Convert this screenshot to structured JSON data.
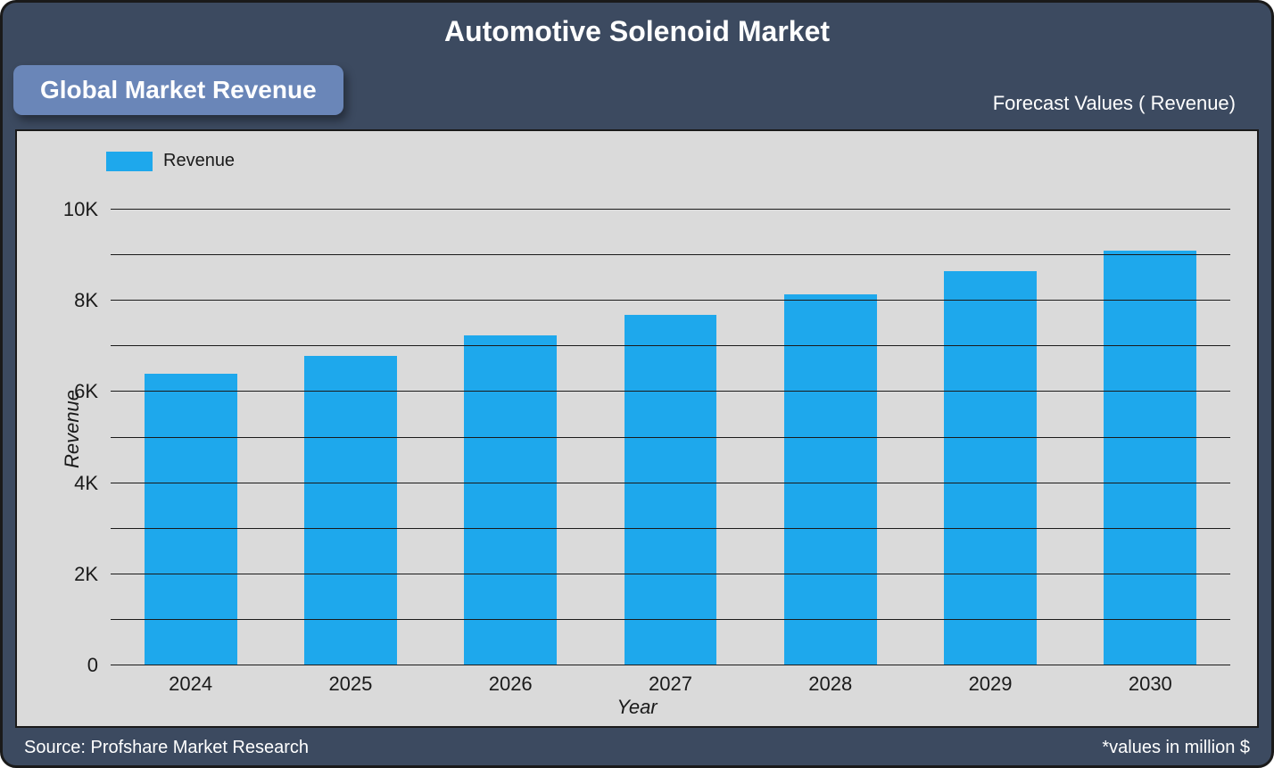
{
  "title": {
    "text": "Automotive Solenoid Market",
    "fontsize": 32,
    "color": "#ffffff"
  },
  "badge": {
    "text": "Global Market Revenue",
    "fontsize": 28,
    "bg": "#6a86b8",
    "color": "#ffffff"
  },
  "subtitle_right": {
    "text": "Forecast Values ( Revenue)",
    "fontsize": 22,
    "color": "#ffffff"
  },
  "frame": {
    "background_color": "#3c4a60",
    "border_color": "#1a1a1a",
    "border_radius": 18
  },
  "plot": {
    "background_color": "#dadada",
    "border_color": "#1a1a1a"
  },
  "legend": {
    "label": "Revenue",
    "swatch_color": "#1ea8ec",
    "fontsize": 20
  },
  "chart": {
    "type": "bar",
    "categories": [
      "2024",
      "2025",
      "2026",
      "2027",
      "2028",
      "2029",
      "2030"
    ],
    "values": [
      6400,
      6800,
      7250,
      7700,
      8150,
      8650,
      9100
    ],
    "bar_color": "#1ea8ec",
    "bar_width": 0.58,
    "ylim": [
      0,
      10000
    ],
    "yticks": [
      0,
      1000,
      2000,
      3000,
      4000,
      5000,
      6000,
      7000,
      8000,
      9000,
      10000
    ],
    "ytick_labels": {
      "0": "0",
      "2000": "2K",
      "4000": "4K",
      "6000": "6K",
      "8000": "8K",
      "10000": "10K"
    },
    "grid_color": "#1a1a1a",
    "tick_fontsize": 22,
    "bar_slot_flex": "space-around"
  },
  "axes": {
    "x_title": "Year",
    "y_title": "Revenue",
    "title_fontsize": 22,
    "title_style": "italic",
    "title_color": "#1a1a1a"
  },
  "footer": {
    "left": {
      "text": "Source: Profshare Market Research",
      "fontsize": 20,
      "color": "#ffffff"
    },
    "right": {
      "text": "*values in million $",
      "fontsize": 20,
      "color": "#ffffff"
    }
  }
}
